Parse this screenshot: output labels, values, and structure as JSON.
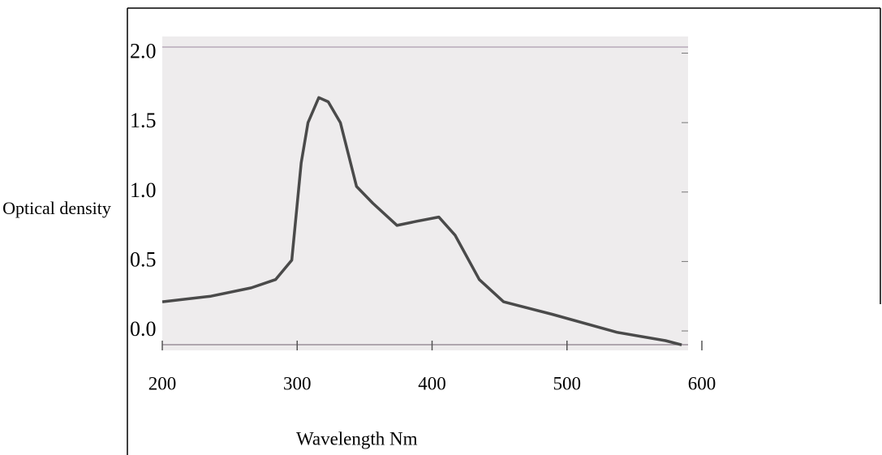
{
  "chart_data": {
    "type": "line",
    "x_label": "Wavelength  Nm",
    "y_label": "Optical density",
    "xlim": [
      200,
      600
    ],
    "xticks": [
      200,
      300,
      400,
      500,
      600
    ],
    "ylim": [
      -0.14,
      2.12
    ],
    "yticks": [
      {
        "value": 0,
        "label": "0.0"
      },
      {
        "value": 0.5,
        "label": "0.5"
      },
      {
        "value": 1,
        "label": "1.0"
      },
      {
        "value": 1.5,
        "label": "1.5"
      },
      {
        "value": 2,
        "label": "2.0"
      }
    ],
    "x": [
      200,
      236,
      266,
      284,
      296,
      303,
      308,
      316,
      323,
      332,
      344,
      356,
      374,
      389,
      405,
      417,
      435,
      453,
      489,
      537,
      573,
      585
    ],
    "series": [
      {
        "color": "#4a4a4a",
        "values": [
          0.21,
          0.25,
          0.31,
          0.37,
          0.51,
          1.21,
          1.5,
          1.68,
          1.65,
          1.5,
          1.04,
          0.92,
          0.76,
          0.79,
          0.82,
          0.69,
          0.37,
          0.21,
          0.12,
          -0.01,
          -0.07,
          -0.1
        ]
      }
    ]
  }
}
